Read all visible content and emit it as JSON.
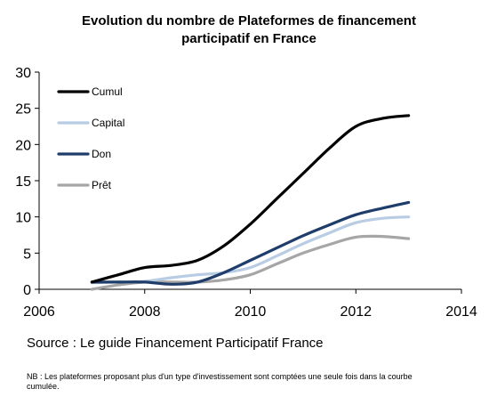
{
  "chart_data": {
    "type": "line",
    "title_lines": [
      "Evolution du nombre de Plateformes de financement",
      "participatif en France"
    ],
    "xlabel": "",
    "ylabel": "",
    "xlim": [
      2006,
      2014
    ],
    "ylim": [
      0,
      30
    ],
    "x_ticks": [
      "2006",
      "2008",
      "2010",
      "2012",
      "2014"
    ],
    "y_ticks": [
      "0",
      "5",
      "10",
      "15",
      "20",
      "25",
      "30"
    ],
    "grid": false,
    "legend_position": "top-left",
    "series": [
      {
        "name": "Cumul",
        "color": "#000000",
        "points": [
          [
            2007,
            1
          ],
          [
            2007.5,
            2
          ],
          [
            2008,
            3
          ],
          [
            2008.5,
            3.3
          ],
          [
            2009,
            4
          ],
          [
            2009.5,
            6
          ],
          [
            2010,
            9
          ],
          [
            2010.5,
            12.5
          ],
          [
            2011,
            16
          ],
          [
            2011.5,
            19.5
          ],
          [
            2012,
            22.5
          ],
          [
            2012.5,
            23.6
          ],
          [
            2013,
            24
          ]
        ]
      },
      {
        "name": "Capital",
        "color": "#b8cce4",
        "points": [
          [
            2007,
            0.9
          ],
          [
            2007.5,
            1
          ],
          [
            2008,
            1.1
          ],
          [
            2008.5,
            1.6
          ],
          [
            2009,
            2
          ],
          [
            2009.5,
            2.3
          ],
          [
            2010,
            3
          ],
          [
            2010.5,
            4.6
          ],
          [
            2011,
            6.3
          ],
          [
            2011.5,
            7.8
          ],
          [
            2012,
            9.2
          ],
          [
            2012.5,
            9.8
          ],
          [
            2013,
            10
          ]
        ]
      },
      {
        "name": "Don",
        "color": "#1f3d6b",
        "points": [
          [
            2007,
            1
          ],
          [
            2007.5,
            1
          ],
          [
            2008,
            1
          ],
          [
            2008.5,
            0.7
          ],
          [
            2009,
            1
          ],
          [
            2009.5,
            2.3
          ],
          [
            2010,
            4
          ],
          [
            2010.5,
            5.7
          ],
          [
            2011,
            7.4
          ],
          [
            2011.5,
            8.9
          ],
          [
            2012,
            10.3
          ],
          [
            2012.5,
            11.2
          ],
          [
            2013,
            12
          ]
        ]
      },
      {
        "name": "Prêt",
        "color": "#a6a6a6",
        "points": [
          [
            2007,
            0
          ],
          [
            2007.5,
            0.6
          ],
          [
            2008,
            1
          ],
          [
            2008.5,
            1
          ],
          [
            2009,
            1
          ],
          [
            2009.5,
            1.3
          ],
          [
            2010,
            2
          ],
          [
            2010.5,
            3.5
          ],
          [
            2011,
            5
          ],
          [
            2011.5,
            6.2
          ],
          [
            2012,
            7.2
          ],
          [
            2012.5,
            7.3
          ],
          [
            2013,
            7
          ]
        ]
      }
    ]
  },
  "footer": {
    "source": "Source : Le guide Financement Participatif France",
    "note": "NB : Les plateformes proposant plus d'un type d'investissement sont comptées une seule fois dans la courbe cumulée."
  }
}
